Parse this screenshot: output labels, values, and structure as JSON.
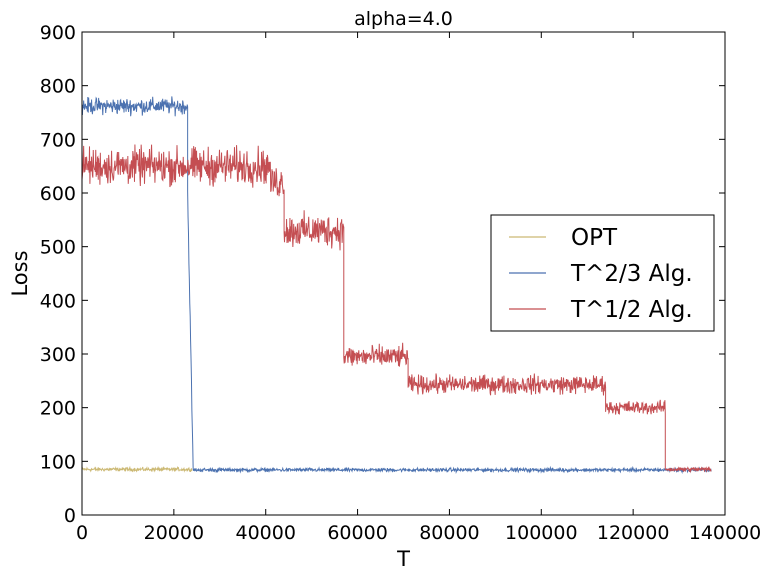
{
  "chart_data": {
    "type": "line",
    "title": "alpha=4.0",
    "xlabel": "T",
    "ylabel": "Loss",
    "xlim": [
      0,
      140000
    ],
    "ylim": [
      0,
      900
    ],
    "xticks": [
      0,
      20000,
      40000,
      60000,
      80000,
      100000,
      120000,
      140000
    ],
    "yticks": [
      0,
      100,
      200,
      300,
      400,
      500,
      600,
      700,
      800,
      900
    ],
    "grid": false,
    "legend_position": "center-right",
    "series": [
      {
        "name": "OPT",
        "color": "#ccb974",
        "segments": [
          {
            "x_start": 0,
            "x_end": 24000,
            "mean": 85,
            "noise": 5
          }
        ]
      },
      {
        "name": "T^2/3 Alg.",
        "color": "#4c72b0",
        "segments": [
          {
            "x_start": 0,
            "x_end": 23000,
            "mean": 762,
            "noise": 22
          },
          {
            "x_start": 23000,
            "x_end": 24200,
            "mean_start": 600,
            "mean_end": 85,
            "noise": 18
          },
          {
            "x_start": 24200,
            "x_end": 137000,
            "mean": 84,
            "noise": 5
          }
        ]
      },
      {
        "name": "T^1/2 Alg.",
        "color": "#c44e52",
        "segments": [
          {
            "x_start": 0,
            "x_end": 41000,
            "mean": 650,
            "noise": 50
          },
          {
            "x_start": 41000,
            "x_end": 44000,
            "mean": 620,
            "noise": 45
          },
          {
            "x_start": 44000,
            "x_end": 57000,
            "mean": 530,
            "noise": 45
          },
          {
            "x_start": 57000,
            "x_end": 71000,
            "mean": 295,
            "noise": 30
          },
          {
            "x_start": 71000,
            "x_end": 114000,
            "mean": 243,
            "noise": 25
          },
          {
            "x_start": 114000,
            "x_end": 127000,
            "mean": 200,
            "noise": 18
          },
          {
            "x_start": 127000,
            "x_end": 137000,
            "mean": 85,
            "noise": 6
          }
        ]
      }
    ]
  }
}
